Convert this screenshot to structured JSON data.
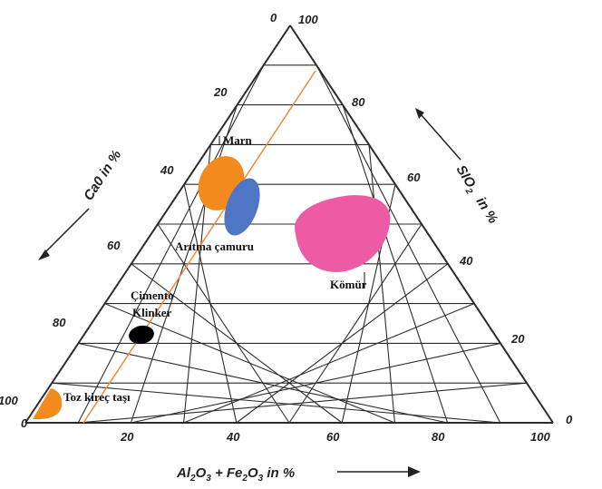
{
  "diagram": {
    "axes": {
      "left_title": "Ca0 in %",
      "right_title_main": "SIO",
      "right_title_sub": "2",
      "right_title_tail": "in %",
      "bottom_title": {
        "a": "Al",
        "a_sub": "2",
        "b": "O",
        "b_sub": "3",
        "c": " + Fe",
        "c_sub": "2",
        "d": "O",
        "d_sub": "3",
        "e": " in %"
      }
    },
    "ticks": {
      "left": [
        "0",
        "20",
        "40",
        "60",
        "80",
        "100"
      ],
      "right": [
        "100",
        "80",
        "60",
        "40",
        "20",
        "0"
      ],
      "bottom": [
        "0",
        "20",
        "40",
        "60",
        "80",
        "100"
      ]
    },
    "regions": [
      {
        "label": "Marn",
        "color": "#f28a1e"
      },
      {
        "label": "Arıtma çamuru",
        "color": "#4f76c4"
      },
      {
        "label": "Kömür",
        "color": "#ee5ba5"
      },
      {
        "label": "Çimento",
        "color": "#000000"
      },
      {
        "label": "Klinker",
        "color": "#000000"
      },
      {
        "label": "Toz kireç taşı",
        "color": "#f28a1e"
      }
    ],
    "colors": {
      "grid": "#2b2b2b",
      "guide_line": "#f08a3c"
    }
  }
}
